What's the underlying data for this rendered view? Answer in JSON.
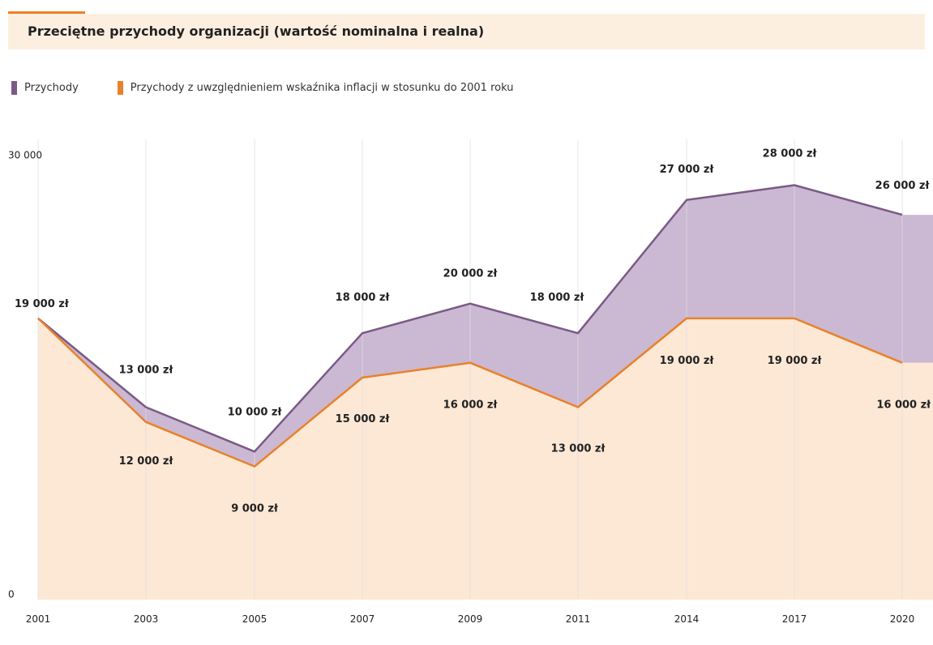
{
  "header": {
    "title": "Przeciętne przychody organizacji (wartość nominalna i realna)",
    "accent_color": "#e8822a",
    "background_color": "#fdefe0"
  },
  "legend": [
    {
      "label": "Przychody",
      "color": "#7a5a84"
    },
    {
      "label": "Przychody z uwzględnieniem wskaźnika inflacji w stosunku do 2001 roku",
      "color": "#e8822a"
    }
  ],
  "chart_data": {
    "type": "area",
    "categories": [
      "2001",
      "2003",
      "2005",
      "2007",
      "2009",
      "2011",
      "2014",
      "2017",
      "2020"
    ],
    "series": [
      {
        "name": "Przychody",
        "values": [
          19000,
          13000,
          10000,
          18000,
          20000,
          18000,
          27000,
          28000,
          26000
        ],
        "labels": [
          "19 000 zł",
          "13 000 zł",
          "10 000 zł",
          "18 000 zł",
          "20 000 zł",
          "18 000 zł",
          "27 000 zł",
          "28 000 zł",
          "26 000 zł"
        ],
        "line_color": "#7a5a84",
        "fill_color": "#cbb8d2"
      },
      {
        "name": "Przychody z uwzględnieniem wskaźnika inflacji w stosunku do 2001 roku",
        "values": [
          19000,
          12000,
          9000,
          15000,
          16000,
          13000,
          19000,
          19000,
          16000
        ],
        "labels": [
          "19 000 zł",
          "12 000 zł",
          "9 000 zł",
          "15 000 zł",
          "16 000 zł",
          "13 000 zł",
          "19 000 zł",
          "19 000 zł",
          "16 000 zł"
        ],
        "line_color": "#e8822a",
        "fill_color": "#fde8d6"
      }
    ],
    "ylim": [
      0,
      30000
    ],
    "yticks": [
      "0",
      "30 000"
    ],
    "grid": "vertical"
  }
}
